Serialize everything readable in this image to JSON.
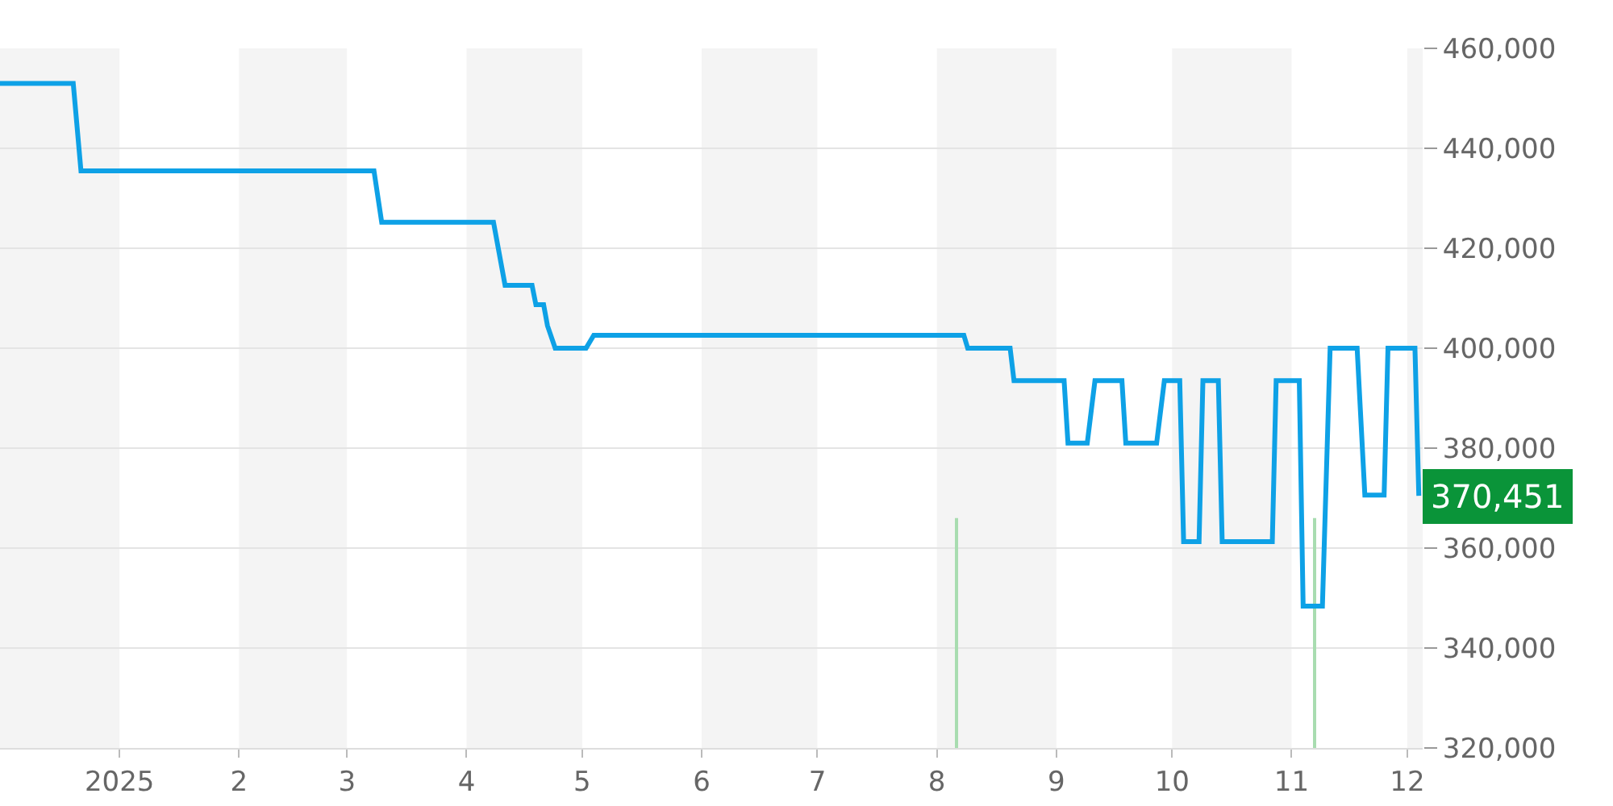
{
  "chart_data": {
    "type": "line",
    "xlim": [
      "2024-12-01",
      "2025-12-05"
    ],
    "ylim": [
      320000,
      460000
    ],
    "xticks": [
      {
        "value": "2025-01-01",
        "label": "2025"
      },
      {
        "value": "2025-02-01",
        "label": "2"
      },
      {
        "value": "2025-03-01",
        "label": "3"
      },
      {
        "value": "2025-04-01",
        "label": "4"
      },
      {
        "value": "2025-05-01",
        "label": "5"
      },
      {
        "value": "2025-06-01",
        "label": "6"
      },
      {
        "value": "2025-07-01",
        "label": "7"
      },
      {
        "value": "2025-08-01",
        "label": "8"
      },
      {
        "value": "2025-09-01",
        "label": "9"
      },
      {
        "value": "2025-10-01",
        "label": "10"
      },
      {
        "value": "2025-11-01",
        "label": "11"
      },
      {
        "value": "2025-12-01",
        "label": "12"
      }
    ],
    "yticks": [
      {
        "value": 320000,
        "label": "320,000"
      },
      {
        "value": 340000,
        "label": "340,000"
      },
      {
        "value": 360000,
        "label": "360,000"
      },
      {
        "value": 380000,
        "label": "380,000"
      },
      {
        "value": 400000,
        "label": "400,000"
      },
      {
        "value": 420000,
        "label": "420,000"
      },
      {
        "value": 440000,
        "label": "440,000"
      },
      {
        "value": 460000,
        "label": "460,000"
      }
    ],
    "grid": "y",
    "marker": "none",
    "line_style": "solid",
    "series": [
      {
        "type": "bar",
        "color": "#a8dcb0",
        "x": [
          "2025-08-06",
          "2025-11-07"
        ],
        "base": [
          320000,
          320000
        ],
        "values": [
          46000,
          46000
        ]
      },
      {
        "color": "#0ea1e6",
        "x": [
          "2024-12-01",
          "2024-12-20",
          "2024-12-22",
          "2025-03-08",
          "2025-03-10",
          "2025-04-08",
          "2025-04-11",
          "2025-04-18",
          "2025-04-19",
          "2025-04-21",
          "2025-04-22",
          "2025-04-24",
          "2025-05-02",
          "2025-05-04",
          "2025-08-08",
          "2025-08-09",
          "2025-08-20",
          "2025-08-21",
          "2025-09-03",
          "2025-09-04",
          "2025-09-09",
          "2025-09-11",
          "2025-09-18",
          "2025-09-19",
          "2025-09-27",
          "2025-09-29",
          "2025-10-03",
          "2025-10-04",
          "2025-10-08",
          "2025-10-09",
          "2025-10-13",
          "2025-10-14",
          "2025-10-27",
          "2025-10-28",
          "2025-11-03",
          "2025-11-04",
          "2025-11-09",
          "2025-11-11",
          "2025-11-18",
          "2025-11-20",
          "2025-11-25",
          "2025-11-26",
          "2025-12-03",
          "2025-12-04"
        ],
        "values": [
          453000,
          453000,
          435500,
          435500,
          425200,
          425200,
          412600,
          412600,
          408700,
          408700,
          404500,
          400000,
          400000,
          402600,
          402600,
          400000,
          400000,
          393500,
          393500,
          381000,
          381000,
          393500,
          393500,
          381000,
          381000,
          393500,
          393500,
          361300,
          361300,
          393500,
          393500,
          361300,
          361300,
          393500,
          393500,
          348400,
          348400,
          400000,
          400000,
          370600,
          370600,
          400000,
          400000,
          370451
        ]
      }
    ],
    "bands": [
      {
        "axis": "x",
        "from": "2024-12-01",
        "to": "2025-01-01",
        "color": "#f4f4f4"
      },
      {
        "axis": "x",
        "from": "2025-02-01",
        "to": "2025-03-01",
        "color": "#f4f4f4"
      },
      {
        "axis": "x",
        "from": "2025-04-01",
        "to": "2025-05-01",
        "color": "#f4f4f4"
      },
      {
        "axis": "x",
        "from": "2025-06-01",
        "to": "2025-07-01",
        "color": "#f4f4f4"
      },
      {
        "axis": "x",
        "from": "2025-08-01",
        "to": "2025-09-01",
        "color": "#f4f4f4"
      },
      {
        "axis": "x",
        "from": "2025-10-01",
        "to": "2025-11-01",
        "color": "#f4f4f4"
      },
      {
        "axis": "x",
        "from": "2025-12-01",
        "to": "2025-12-05",
        "color": "#f4f4f4"
      }
    ],
    "annotations": [
      {
        "text": "370,451",
        "x": "2025-12-04",
        "y": 370451
      }
    ]
  }
}
